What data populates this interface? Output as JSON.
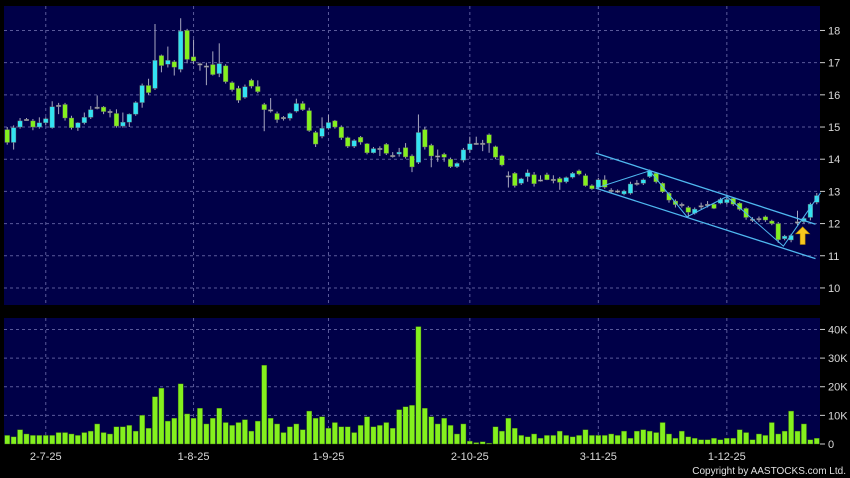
{
  "chart_data": [
    {
      "type": "candlestick",
      "title": "",
      "ylim": [
        9.47,
        18.76
      ],
      "y_ticks": [
        10,
        11,
        12,
        13,
        14,
        15,
        16,
        17,
        18
      ],
      "grid": true,
      "x_ticks": [
        {
          "index": 6,
          "label": "2-7-25"
        },
        {
          "index": 29,
          "label": "1-8-25"
        },
        {
          "index": 50,
          "label": "1-9-25"
        },
        {
          "index": 72,
          "label": "2-10-25"
        },
        {
          "index": 92,
          "label": "3-11-25"
        },
        {
          "index": 112,
          "label": "1-12-25"
        }
      ],
      "ohlc": [
        [
          14.92,
          15.0,
          14.45,
          14.52
        ],
        [
          14.52,
          15.05,
          14.3,
          14.98
        ],
        [
          15.0,
          15.28,
          14.95,
          15.19
        ],
        [
          15.24,
          15.28,
          15.2,
          15.24
        ],
        [
          15.19,
          15.25,
          14.9,
          15.0
        ],
        [
          15.0,
          15.3,
          14.95,
          15.13
        ],
        [
          15.13,
          15.3,
          15.05,
          15.26
        ],
        [
          14.98,
          15.8,
          14.95,
          15.63
        ],
        [
          15.68,
          15.75,
          15.4,
          15.68
        ],
        [
          15.7,
          15.75,
          15.2,
          15.28
        ],
        [
          15.28,
          15.35,
          14.92,
          14.98
        ],
        [
          14.98,
          15.15,
          14.88,
          15.13
        ],
        [
          15.13,
          15.45,
          15.08,
          15.3
        ],
        [
          15.3,
          15.65,
          15.25,
          15.54
        ],
        [
          15.62,
          15.98,
          15.55,
          15.62
        ],
        [
          15.62,
          15.65,
          15.4,
          15.48
        ],
        [
          15.49,
          15.55,
          15.3,
          15.49
        ],
        [
          15.42,
          15.55,
          14.98,
          15.03
        ],
        [
          15.03,
          15.45,
          14.98,
          15.15
        ],
        [
          15.15,
          15.42,
          15.0,
          15.4
        ],
        [
          15.4,
          15.8,
          15.35,
          15.76
        ],
        [
          15.76,
          16.35,
          15.6,
          16.29
        ],
        [
          16.29,
          16.5,
          16.0,
          16.07
        ],
        [
          16.2,
          18.2,
          16.15,
          17.07
        ],
        [
          17.22,
          17.25,
          16.7,
          16.91
        ],
        [
          16.95,
          17.5,
          16.85,
          17.07
        ],
        [
          17.03,
          17.08,
          16.6,
          16.86
        ],
        [
          16.79,
          18.38,
          16.7,
          17.98
        ],
        [
          18.0,
          18.05,
          16.98,
          17.1
        ],
        [
          17.18,
          17.72,
          16.95,
          17.05
        ],
        [
          16.97,
          17.0,
          16.75,
          16.97
        ],
        [
          16.9,
          17.0,
          16.3,
          16.9
        ],
        [
          16.94,
          17.35,
          16.6,
          16.63
        ],
        [
          16.66,
          17.6,
          16.55,
          16.97
        ],
        [
          16.9,
          16.95,
          16.35,
          16.41
        ],
        [
          16.38,
          16.42,
          16.1,
          16.16
        ],
        [
          16.2,
          16.28,
          15.75,
          15.83
        ],
        [
          15.92,
          16.32,
          15.88,
          16.25
        ],
        [
          16.45,
          16.5,
          16.2,
          16.27
        ],
        [
          16.26,
          16.45,
          16.05,
          16.1
        ],
        [
          15.7,
          15.75,
          14.87,
          15.54
        ],
        [
          15.54,
          15.9,
          15.45,
          15.54
        ],
        [
          15.42,
          15.48,
          15.13,
          15.23
        ],
        [
          15.3,
          15.34,
          15.2,
          15.3
        ],
        [
          15.27,
          15.45,
          15.2,
          15.42
        ],
        [
          15.49,
          15.88,
          15.45,
          15.73
        ],
        [
          15.73,
          15.8,
          15.5,
          15.54
        ],
        [
          15.51,
          15.6,
          14.85,
          14.89
        ],
        [
          14.83,
          14.88,
          14.38,
          14.47
        ],
        [
          14.71,
          15.3,
          14.65,
          14.96
        ],
        [
          14.96,
          15.38,
          14.92,
          15.14
        ],
        [
          15.19,
          15.22,
          14.95,
          15.0
        ],
        [
          15.0,
          15.05,
          14.6,
          14.67
        ],
        [
          14.67,
          14.7,
          14.35,
          14.4
        ],
        [
          14.4,
          14.62,
          14.35,
          14.58
        ],
        [
          14.68,
          14.72,
          14.45,
          14.53
        ],
        [
          14.48,
          14.5,
          14.15,
          14.2
        ],
        [
          14.2,
          14.38,
          14.18,
          14.33
        ],
        [
          14.34,
          14.4,
          14.1,
          14.34
        ],
        [
          14.46,
          14.5,
          14.13,
          14.18
        ],
        [
          14.12,
          14.22,
          14.05,
          14.12
        ],
        [
          14.16,
          14.35,
          14.08,
          14.22
        ],
        [
          14.36,
          14.5,
          14.02,
          14.07
        ],
        [
          14.1,
          14.15,
          13.6,
          13.76
        ],
        [
          13.9,
          15.39,
          13.85,
          14.83
        ],
        [
          14.92,
          15.0,
          14.3,
          14.38
        ],
        [
          14.43,
          14.48,
          13.75,
          14.1
        ],
        [
          14.11,
          14.3,
          13.92,
          14.11
        ],
        [
          14.15,
          14.2,
          13.92,
          14.06
        ],
        [
          14.0,
          14.05,
          13.73,
          13.77
        ],
        [
          13.77,
          13.9,
          13.73,
          13.87
        ],
        [
          13.97,
          14.35,
          13.9,
          14.29
        ],
        [
          14.29,
          14.7,
          14.2,
          14.48
        ],
        [
          14.5,
          14.7,
          14.45,
          14.5
        ],
        [
          14.5,
          14.6,
          14.25,
          14.5
        ],
        [
          14.76,
          14.8,
          14.2,
          14.5
        ],
        [
          14.39,
          14.42,
          14.0,
          14.06
        ],
        [
          14.11,
          14.14,
          13.78,
          13.82
        ],
        [
          13.49,
          13.62,
          13.12,
          13.49
        ],
        [
          13.56,
          13.6,
          13.12,
          13.18
        ],
        [
          13.25,
          13.42,
          13.2,
          13.39
        ],
        [
          13.46,
          13.68,
          13.3,
          13.58
        ],
        [
          13.52,
          13.6,
          13.15,
          13.24
        ],
        [
          13.36,
          13.5,
          13.3,
          13.36
        ],
        [
          13.52,
          13.58,
          13.35,
          13.36
        ],
        [
          13.38,
          13.5,
          13.25,
          13.38
        ],
        [
          13.4,
          13.45,
          13.05,
          13.28
        ],
        [
          13.3,
          13.46,
          13.25,
          13.43
        ],
        [
          13.44,
          13.6,
          13.4,
          13.56
        ],
        [
          13.64,
          13.68,
          13.5,
          13.54
        ],
        [
          13.49,
          13.55,
          13.15,
          13.18
        ],
        [
          13.18,
          13.22,
          13.05,
          13.08
        ],
        [
          13.13,
          13.42,
          13.08,
          13.36
        ],
        [
          13.36,
          13.5,
          13.08,
          13.13
        ],
        [
          13.04,
          13.1,
          12.95,
          13.04
        ],
        [
          13.02,
          13.06,
          12.95,
          13.02
        ],
        [
          12.92,
          13.05,
          12.88,
          13.01
        ],
        [
          12.94,
          13.3,
          12.9,
          13.23
        ],
        [
          13.26,
          13.35,
          13.18,
          13.26
        ],
        [
          13.25,
          13.4,
          13.2,
          13.36
        ],
        [
          13.46,
          13.68,
          13.42,
          13.63
        ],
        [
          13.56,
          13.6,
          13.25,
          13.3
        ],
        [
          13.25,
          13.28,
          12.95,
          12.99
        ],
        [
          12.94,
          12.98,
          12.65,
          12.73
        ],
        [
          12.7,
          12.75,
          12.5,
          12.59
        ],
        [
          12.6,
          12.65,
          12.5,
          12.6
        ],
        [
          12.5,
          12.55,
          12.2,
          12.35
        ],
        [
          12.32,
          12.5,
          12.28,
          12.45
        ],
        [
          12.56,
          12.65,
          12.45,
          12.56
        ],
        [
          12.6,
          12.7,
          12.5,
          12.6
        ],
        [
          12.6,
          12.64,
          12.45,
          12.47
        ],
        [
          12.63,
          12.8,
          12.6,
          12.75
        ],
        [
          12.65,
          12.85,
          12.6,
          12.75
        ],
        [
          12.78,
          12.82,
          12.55,
          12.6
        ],
        [
          12.63,
          12.66,
          12.4,
          12.44
        ],
        [
          12.47,
          12.5,
          12.12,
          12.19
        ],
        [
          12.14,
          12.2,
          12.05,
          12.14
        ],
        [
          12.16,
          12.22,
          12.05,
          12.16
        ],
        [
          12.21,
          12.25,
          12.05,
          12.11
        ],
        [
          12.08,
          12.12,
          11.95,
          12.0
        ],
        [
          12.0,
          12.05,
          11.4,
          11.5
        ],
        [
          11.53,
          11.65,
          11.48,
          11.61
        ],
        [
          11.49,
          11.68,
          11.42,
          11.63
        ],
        [
          12.06,
          12.4,
          11.95,
          12.06
        ],
        [
          12.06,
          12.2,
          12.0,
          12.16
        ],
        [
          12.19,
          12.65,
          12.1,
          12.6
        ],
        [
          12.66,
          12.95,
          12.6,
          12.87
        ]
      ],
      "colors": {
        "up": "#33e3f2",
        "down": "#84f01e",
        "doji": "#a8a8b8",
        "wick": "#a8a8c0"
      },
      "annotations": {
        "channel_upper": [
          [
            91.6,
            14.19
          ],
          [
            125.8,
            11.98
          ]
        ],
        "channel_lower": [
          [
            91.6,
            13.1
          ],
          [
            125.8,
            10.91
          ]
        ],
        "zigzag": [
          [
            91.6,
            13.1
          ],
          [
            100,
            13.64
          ],
          [
            105.8,
            12.21
          ],
          [
            112,
            12.84
          ],
          [
            120.8,
            11.3
          ],
          [
            126.6,
            12.96
          ]
        ],
        "line_color": "#4fb8f0",
        "arrow": {
          "index": 123.8,
          "direction": "up",
          "from": 11.35,
          "to": 11.9,
          "color": "#f7c81e"
        }
      }
    },
    {
      "type": "bar",
      "title": "",
      "ylabel": "",
      "ylim": [
        0,
        44
      ],
      "y_ticks": [
        {
          "value": 0,
          "label": "0"
        },
        {
          "value": 10,
          "label": "10K"
        },
        {
          "value": 20,
          "label": "20K"
        },
        {
          "value": 30,
          "label": "30K"
        },
        {
          "value": 40,
          "label": "40K"
        }
      ],
      "unit": "K",
      "grid": true,
      "values": [
        3,
        2.5,
        5,
        3.5,
        3,
        3,
        3,
        3,
        4,
        4,
        3.5,
        3,
        4,
        4.5,
        7,
        4,
        3.5,
        6,
        6,
        6.5,
        4.5,
        10,
        5.5,
        16.5,
        19.5,
        8,
        9,
        21,
        10.5,
        9,
        12.5,
        7,
        9,
        12.5,
        7.5,
        6.5,
        7.5,
        8.5,
        4.5,
        8,
        27.5,
        9,
        7,
        4,
        6,
        7,
        5,
        11.5,
        9,
        9.5,
        5.5,
        7.5,
        6,
        6,
        4,
        6.5,
        9.5,
        6,
        6.5,
        7.5,
        5.5,
        12,
        13,
        13.5,
        41,
        12.5,
        9.5,
        7,
        9,
        6.5,
        3.5,
        7,
        1,
        0.5,
        0.8,
        0.3,
        6,
        4.5,
        9,
        5.5,
        3,
        2.5,
        3.5,
        2,
        3,
        3,
        4.5,
        3,
        2.5,
        3,
        5,
        3,
        3,
        3,
        3.5,
        3,
        4.5,
        2,
        4.5,
        5,
        4.5,
        4,
        7.5,
        3.5,
        2,
        4.5,
        2.5,
        2,
        1.5,
        1.5,
        2,
        1.5,
        2,
        2,
        5,
        4,
        1.5,
        3.5,
        3,
        7.5,
        3.5,
        4.5,
        11.5,
        4.5,
        7,
        1.5,
        2
      ],
      "bar_color": "#84f01e"
    }
  ],
  "footer": {
    "copyright": "Copyright by AASTOCKS.com Ltd."
  },
  "theme": {
    "plot_bg": "#000048",
    "page_bg": "#000000",
    "grid": "#5a5a9a"
  }
}
